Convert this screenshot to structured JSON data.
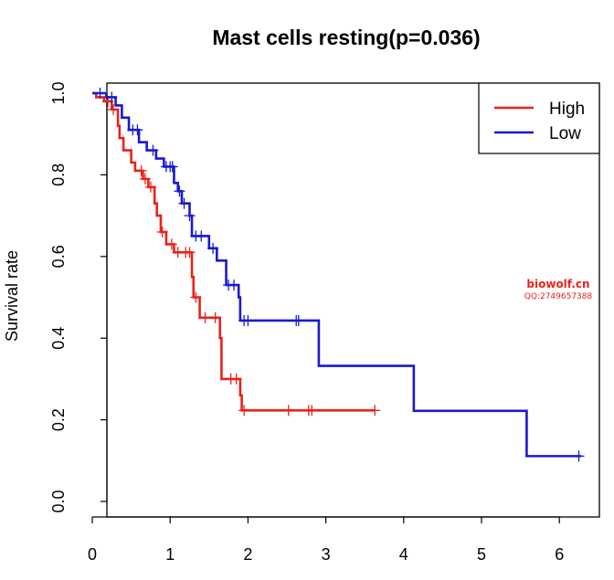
{
  "chart_data": {
    "type": "line",
    "subtype": "kaplan-meier",
    "title": "Mast cells resting(p=0.036)",
    "ylabel": "Survival rate",
    "xlabel": "",
    "xlim": [
      0,
      6.3
    ],
    "ylim": [
      0,
      1.0
    ],
    "x_ticks": [
      "0",
      "1",
      "2",
      "3",
      "4",
      "5",
      "6"
    ],
    "y_ticks": [
      "0.0",
      "0.2",
      "0.4",
      "0.6",
      "0.8",
      "1.0"
    ],
    "grid": false,
    "legend_position": "top-right",
    "watermark": [
      "biowolf.cn",
      "QQ:2749657388"
    ],
    "series": [
      {
        "name": "High",
        "color": "#e8231b",
        "steps": [
          [
            0,
            1.0
          ],
          [
            0.05,
            0.99
          ],
          [
            0.15,
            0.98
          ],
          [
            0.25,
            0.96
          ],
          [
            0.33,
            0.92
          ],
          [
            0.35,
            0.89
          ],
          [
            0.4,
            0.86
          ],
          [
            0.5,
            0.83
          ],
          [
            0.55,
            0.81
          ],
          [
            0.65,
            0.79
          ],
          [
            0.72,
            0.77
          ],
          [
            0.8,
            0.73
          ],
          [
            0.83,
            0.7
          ],
          [
            0.88,
            0.66
          ],
          [
            0.95,
            0.63
          ],
          [
            1.05,
            0.61
          ],
          [
            1.28,
            0.55
          ],
          [
            1.3,
            0.5
          ],
          [
            1.38,
            0.45
          ],
          [
            1.64,
            0.4
          ],
          [
            1.66,
            0.3
          ],
          [
            1.9,
            0.26
          ],
          [
            1.92,
            0.223
          ],
          [
            3.63,
            0.223
          ]
        ],
        "censor_x": [
          0.2,
          0.27,
          0.63,
          0.68,
          0.75,
          0.9,
          1.02,
          1.1,
          1.2,
          1.25,
          1.33,
          1.45,
          1.58,
          1.78,
          1.85,
          1.95,
          2.52,
          2.78,
          2.82,
          3.63
        ]
      },
      {
        "name": "Low",
        "color": "#1a1acc",
        "steps": [
          [
            0,
            1.0
          ],
          [
            0.18,
            0.99
          ],
          [
            0.3,
            0.97
          ],
          [
            0.38,
            0.94
          ],
          [
            0.47,
            0.91
          ],
          [
            0.6,
            0.88
          ],
          [
            0.7,
            0.86
          ],
          [
            0.82,
            0.84
          ],
          [
            0.92,
            0.82
          ],
          [
            1.05,
            0.78
          ],
          [
            1.1,
            0.76
          ],
          [
            1.15,
            0.73
          ],
          [
            1.25,
            0.7
          ],
          [
            1.28,
            0.65
          ],
          [
            1.5,
            0.62
          ],
          [
            1.6,
            0.59
          ],
          [
            1.72,
            0.53
          ],
          [
            1.88,
            0.5
          ],
          [
            1.9,
            0.443
          ],
          [
            2.9,
            0.443
          ],
          [
            2.91,
            0.332
          ],
          [
            4.12,
            0.332
          ],
          [
            4.13,
            0.222
          ],
          [
            5.57,
            0.222
          ],
          [
            5.58,
            0.111
          ],
          [
            6.28,
            0.111
          ]
        ],
        "censor_x": [
          0.1,
          0.25,
          0.52,
          0.58,
          0.78,
          0.95,
          1.0,
          1.03,
          1.12,
          1.18,
          1.25,
          1.33,
          1.4,
          1.55,
          1.75,
          1.82,
          1.95,
          2.0,
          2.62,
          2.65,
          6.25
        ]
      }
    ]
  }
}
